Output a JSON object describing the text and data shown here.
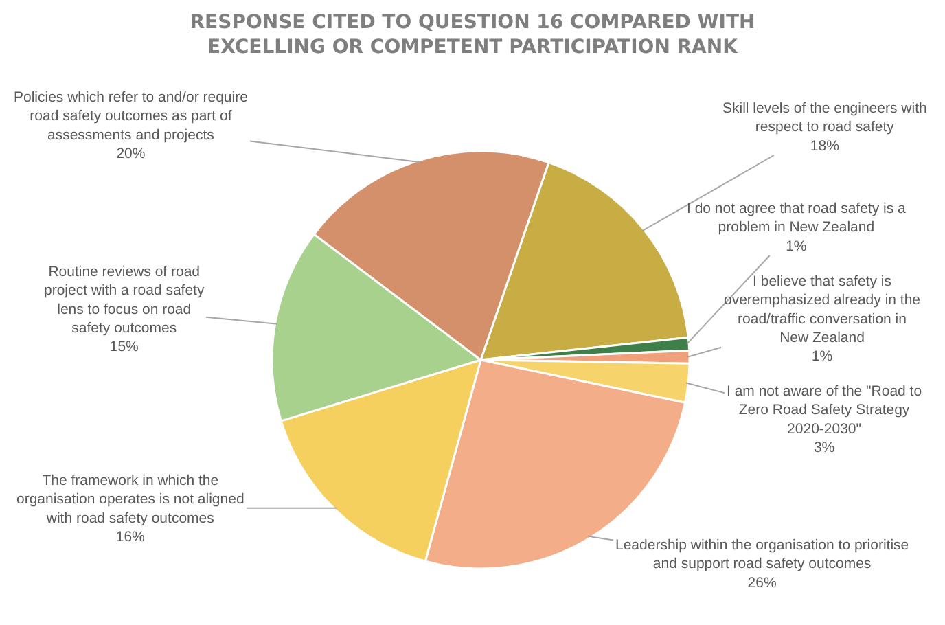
{
  "chart_data": {
    "type": "pie",
    "title": "RESPONSE CITED TO QUESTION 16 COMPARED WITH EXCELLING OR COMPETENT PARTICIPATION RANK",
    "categories": [
      "Skill levels of the engineers with respect to road safety",
      "I do not agree that road safety is a problem in New Zealand",
      "I believe that safety is overemphasized already in the road/traffic conversation in New Zealand",
      "I am not aware of the \"Road to Zero Road Safety Strategy 2020-2030\"",
      "Leadership within the organisation to prioritise and support road safety outcomes",
      "The framework in which the organisation operates is not aligned with road safety outcomes",
      "Routine reviews of road project with a road safety lens to focus on road safety outcomes",
      "Policies which refer to and/or require road safety outcomes as part of assessments and projects"
    ],
    "values": [
      18,
      1,
      1,
      3,
      26,
      16,
      15,
      20
    ],
    "colors": [
      "#c8ad45",
      "#3f7f4a",
      "#f0a07a",
      "#f7d46b",
      "#f3ad88",
      "#f5d05e",
      "#a9d18e",
      "#d4906b"
    ],
    "value_labels": [
      "18%",
      "1%",
      "1%",
      "3%",
      "26%",
      "16%",
      "15%",
      "20%"
    ],
    "legend": false
  }
}
